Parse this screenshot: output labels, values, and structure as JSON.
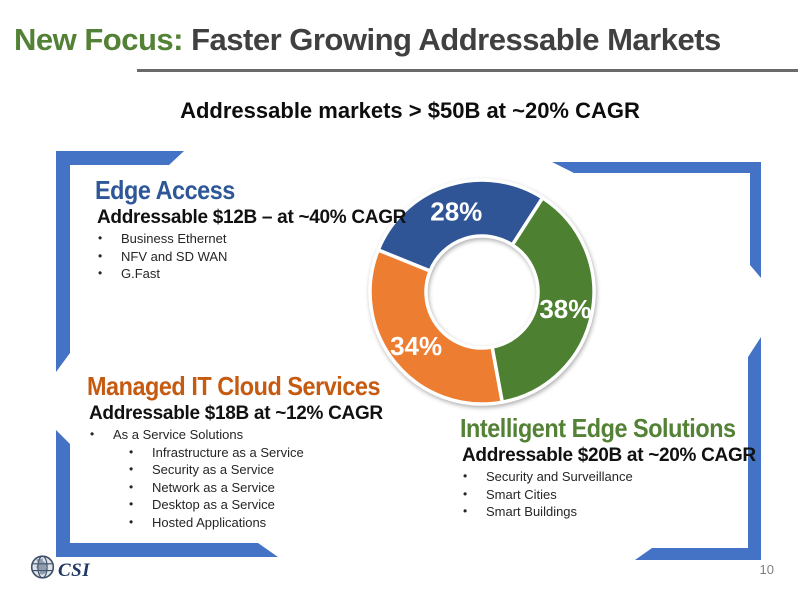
{
  "slide": {
    "title": {
      "highlight": "New Focus:",
      "rest": " Faster Growing Addressable Markets"
    },
    "subtitle": "Addressable markets > $50B at ~20% CAGR",
    "page_number": "10",
    "logo_text": "CSI"
  },
  "ui": {
    "bullet": "•"
  },
  "sections": {
    "edge_access": {
      "heading": "Edge Access",
      "subheading": "Addressable $12B – at ~40% CAGR",
      "bullets": [
        "Business Ethernet",
        "NFV and SD WAN",
        "G.Fast"
      ]
    },
    "managed_it": {
      "heading": "Managed IT Cloud Services",
      "subheading": "Addressable $18B at ~12% CAGR",
      "bullets": [
        "As a Service Solutions"
      ],
      "sub_bullets": [
        "Infrastructure as a Service",
        "Security as a Service",
        "Network as a Service",
        "Desktop as a Service",
        "Hosted Applications"
      ]
    },
    "intelligent_edge": {
      "heading": "Intelligent Edge Solutions",
      "subheading": "Addressable $20B at ~20% CAGR",
      "bullets": [
        "Security and Surveillance",
        "Smart Cities",
        "Smart Buildings"
      ]
    }
  },
  "chart_data": {
    "type": "pie",
    "subtype": "donut",
    "segments": [
      {
        "label": "Edge Access",
        "value": 28,
        "display": "28%",
        "color": "#2F5597"
      },
      {
        "label": "Intelligent Edge Solutions",
        "value": 38,
        "display": "38%",
        "color": "#4E8032"
      },
      {
        "label": "Managed IT Cloud Services",
        "value": 34,
        "display": "34%",
        "color": "#ED7D31"
      }
    ],
    "start_angle_deg": -68,
    "direction": "clockwise",
    "inner_radius_ratio": 0.5,
    "gap_color": "#FFFFFF",
    "data_label_color": "#FFFFFF",
    "legend": "none"
  },
  "colors": {
    "title_highlight": "#538135",
    "title_text": "#404040",
    "underline": "#6A6A6A",
    "bracket_blue": "#4472C4",
    "heading_blue": "#2E5797",
    "heading_orange": "#C55A11",
    "heading_green": "#538135",
    "body_text": "#262626",
    "page_number": "#808080",
    "logo_navy": "#1F3864"
  }
}
